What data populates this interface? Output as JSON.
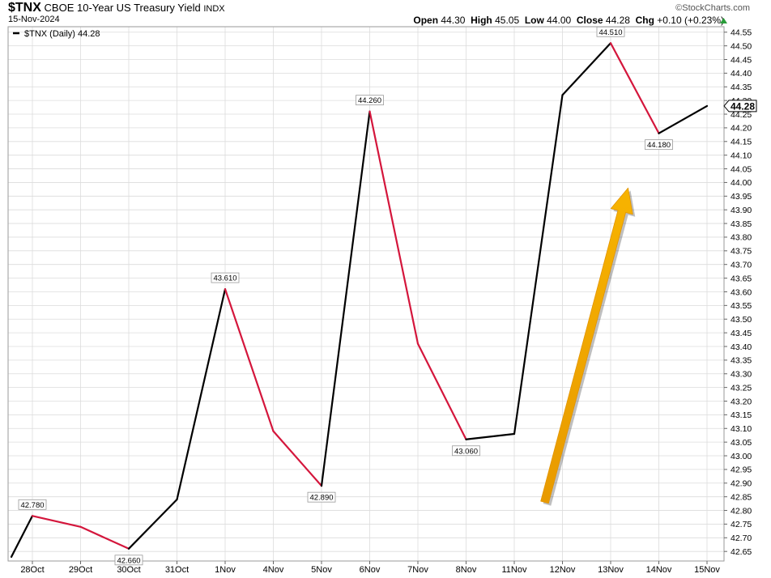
{
  "header": {
    "symbol": "$TNX",
    "name": "CBOE 10-Year US Treasury Yield",
    "exchange": "INDX",
    "date": "15-Nov-2024",
    "brand": "©StockCharts.com",
    "open_label": "Open",
    "open_value": "44.30",
    "high_label": "High",
    "high_value": "45.05",
    "low_label": "Low",
    "low_value": "44.00",
    "close_label": "Close",
    "close_value": "44.28",
    "chg_label": "Chg",
    "chg_value": "+0.10 (+0.23%)"
  },
  "legend": {
    "text": "$TNX (Daily) 44.28"
  },
  "colors": {
    "up": "#000000",
    "down": "#d4163c",
    "arrow": "#f5a800",
    "grid": "#dcdcdc"
  },
  "chart_data": {
    "type": "line",
    "categories": [
      "28Oct",
      "29Oct",
      "30Oct",
      "31Oct",
      "1Nov",
      "4Nov",
      "5Nov",
      "6Nov",
      "7Nov",
      "8Nov",
      "11Nov",
      "12Nov",
      "13Nov",
      "14Nov",
      "15Nov"
    ],
    "start_value": 42.63,
    "series": [
      {
        "name": "$TNX (Daily)",
        "values": [
          42.78,
          42.74,
          42.66,
          42.84,
          43.61,
          43.09,
          42.89,
          44.26,
          43.41,
          43.06,
          43.08,
          44.32,
          44.51,
          44.18,
          44.28
        ]
      }
    ],
    "data_labels": [
      {
        "category": "28Oct",
        "text": "42.780",
        "position": "above"
      },
      {
        "category": "30Oct",
        "text": "42.660",
        "position": "below"
      },
      {
        "category": "1Nov",
        "text": "43.610",
        "position": "above"
      },
      {
        "category": "5Nov",
        "text": "42.890",
        "position": "below"
      },
      {
        "category": "6Nov",
        "text": "44.260",
        "position": "above"
      },
      {
        "category": "8Nov",
        "text": "43.060",
        "position": "below"
      },
      {
        "category": "13Nov",
        "text": "44.510",
        "position": "above"
      },
      {
        "category": "14Nov",
        "text": "44.180",
        "position": "below"
      }
    ],
    "last_value_tag": "44.28",
    "ylim": [
      42.615,
      44.57
    ],
    "yticks": [
      "44.55",
      "44.50",
      "44.45",
      "44.40",
      "44.35",
      "44.30",
      "44.25",
      "44.20",
      "44.15",
      "44.10",
      "44.05",
      "44.00",
      "43.95",
      "43.90",
      "43.85",
      "43.80",
      "43.75",
      "43.70",
      "43.65",
      "43.60",
      "43.55",
      "43.50",
      "43.45",
      "43.40",
      "43.35",
      "43.30",
      "43.25",
      "43.20",
      "43.15",
      "43.10",
      "43.05",
      "43.00",
      "42.95",
      "42.90",
      "42.85",
      "42.80",
      "42.75",
      "42.70",
      "42.65"
    ],
    "grid": true,
    "vertical_grid_categories": [
      "1Nov",
      "11Nov"
    ],
    "legend_position": "top-left",
    "annotation": {
      "type": "arrow",
      "direction": "up",
      "from_category": "12Nov",
      "color": "orange"
    },
    "title": "",
    "xlabel": "",
    "ylabel": ""
  }
}
